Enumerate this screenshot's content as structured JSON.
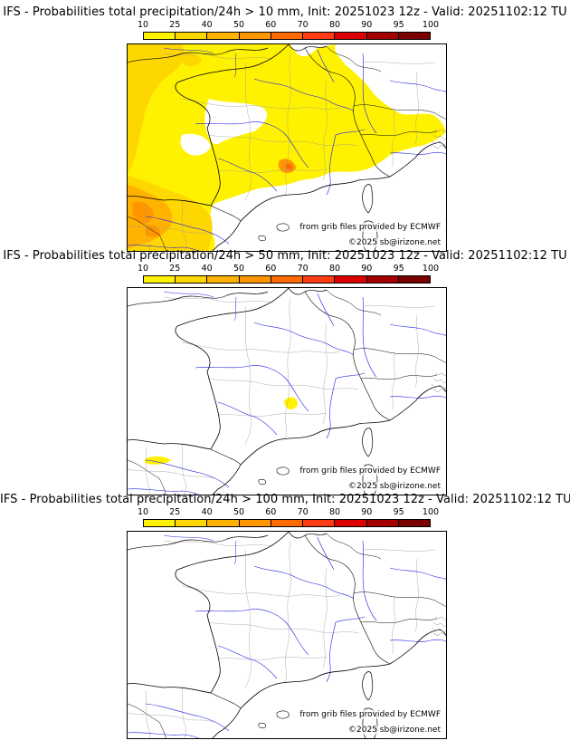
{
  "legend_ticks": [
    "10",
    "25",
    "40",
    "50",
    "60",
    "70",
    "80",
    "90",
    "95",
    "100"
  ],
  "legend_colors": [
    "#fff200",
    "#ffd700",
    "#ffb300",
    "#ff9600",
    "#ff6a00",
    "#ff3c14",
    "#dc0000",
    "#a50000",
    "#7a0000"
  ],
  "credits": {
    "source": "from grib files provided by ECMWF",
    "copyright": "©2025 sb@irizone.net"
  },
  "panels": [
    {
      "title": "IFS - Probabilities total precipitation/24h > 10 mm, Init: 20251023 12z - Valid: 20251102:12 TU",
      "threshold": "10 mm"
    },
    {
      "title": "IFS - Probabilities total precipitation/24h > 50 mm, Init: 20251023 12z - Valid: 20251102:12 TU",
      "threshold": "50 mm"
    },
    {
      "title": "IFS - Probabilities total precipitation/24h > 100 mm, Init: 20251023 12z - Valid: 20251102:12 TU",
      "threshold": "100 mm"
    }
  ]
}
